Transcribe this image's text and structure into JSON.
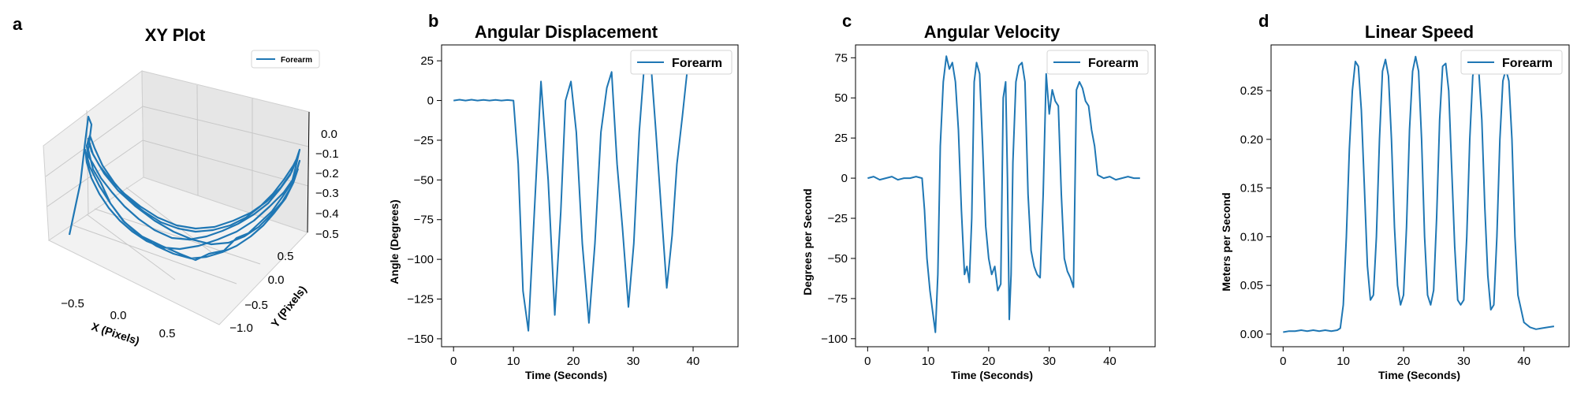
{
  "colors": {
    "line": "#1f77b4",
    "axes": "#000000",
    "pane_left": "#f0f0f0",
    "pane_right": "#e8e8e8",
    "pane_floor": "#f2f2f2",
    "grid": "#c8c8c8"
  },
  "chart_data": [
    {
      "panel": "a",
      "type": "line",
      "subtype": "3d",
      "title": "XY Plot",
      "xlabel": "X (Pixels)",
      "ylabel": "Y (Pixels)",
      "zlabel": "",
      "legend": "Forearm",
      "legend_position": "top-right",
      "xticks": [
        "−0.5",
        "0.0",
        "0.5"
      ],
      "yticks": [
        "0.5",
        "0.0",
        "−0.5",
        "−1.0"
      ],
      "zticks": [
        "0.0",
        "−0.1",
        "−0.2",
        "−0.3",
        "−0.4",
        "−0.5"
      ],
      "xlim": [
        -0.75,
        0.75
      ],
      "ylim": [
        -1.2,
        0.7
      ],
      "zlim": [
        -0.5,
        0.05
      ],
      "grid": true
    },
    {
      "panel": "b",
      "type": "line",
      "title": "Angular Displacement",
      "xlabel": "Time (Seconds)",
      "ylabel": "Angle (Degrees)",
      "legend": "Forearm",
      "legend_position": "top-right",
      "xlim": [
        -2,
        47.5
      ],
      "ylim": [
        -155,
        35
      ],
      "xticks": [
        0,
        10,
        20,
        30,
        40
      ],
      "yticks": [
        25,
        0,
        -25,
        -50,
        -75,
        -100,
        -125,
        -150
      ],
      "ytick_labels": [
        "25",
        "0",
        "−25",
        "−50",
        "−75",
        "−100",
        "−125",
        "−150"
      ],
      "grid": false,
      "x": [
        0,
        1,
        2,
        3,
        4,
        5,
        6,
        7,
        8,
        9,
        10,
        10.8,
        11.6,
        12.5,
        13.5,
        14.6,
        15.8,
        16.9,
        17.9,
        18.7,
        19.6,
        20.5,
        21.5,
        22.6,
        23.6,
        24.6,
        25.6,
        26.4,
        27.3,
        28.2,
        29.2,
        30.1,
        31,
        31.9,
        32.9,
        33.8,
        34.7,
        35.6,
        36.5,
        37.3,
        38.2,
        39,
        40
      ],
      "y": [
        0,
        0.5,
        0,
        0.5,
        0,
        0.4,
        0,
        0.4,
        0,
        0.3,
        0,
        -40,
        -120,
        -145,
        -70,
        12,
        -50,
        -135,
        -70,
        0,
        12,
        -20,
        -90,
        -140,
        -90,
        -20,
        8,
        18,
        -40,
        -80,
        -130,
        -90,
        -20,
        25,
        26,
        -20,
        -70,
        -118,
        -85,
        -40,
        -10,
        18,
        30
      ]
    },
    {
      "panel": "c",
      "type": "line",
      "title": "Angular Velocity",
      "xlabel": "Time (Seconds)",
      "ylabel": "Degrees per Second",
      "legend": "Forearm",
      "legend_position": "top-right",
      "xlim": [
        -2,
        47.5
      ],
      "ylim": [
        -105,
        83
      ],
      "xticks": [
        0,
        10,
        20,
        30,
        40
      ],
      "yticks": [
        75,
        50,
        25,
        0,
        -25,
        -50,
        -75,
        -100
      ],
      "ytick_labels": [
        "75",
        "50",
        "25",
        "0",
        "−25",
        "−50",
        "−75",
        "−100"
      ],
      "grid": false,
      "x": [
        0,
        1,
        2,
        3,
        4,
        5,
        6,
        7,
        8,
        9,
        9.4,
        9.8,
        10.3,
        10.8,
        11.2,
        11.6,
        12,
        12.5,
        13,
        13.5,
        14,
        14.5,
        15,
        15.5,
        16,
        16.4,
        16.8,
        17.2,
        17.6,
        18,
        18.5,
        19,
        19.5,
        20,
        20.5,
        21,
        21.5,
        22,
        22.4,
        22.8,
        23.1,
        23.4,
        23.7,
        24,
        24.5,
        25,
        25.5,
        26,
        26.5,
        27,
        27.5,
        28,
        28.5,
        29,
        29.5,
        30,
        30.5,
        31,
        31.5,
        32,
        32.5,
        33,
        33.5,
        34,
        34.5,
        35,
        35.5,
        36,
        36.5,
        37,
        37.5,
        38,
        39,
        40,
        41,
        42,
        43,
        44,
        45
      ],
      "y": [
        0,
        1,
        -1,
        0,
        1,
        -1,
        0,
        0,
        1,
        0,
        -20,
        -50,
        -70,
        -85,
        -96,
        -60,
        20,
        60,
        76,
        68,
        72,
        60,
        30,
        -20,
        -60,
        -55,
        -65,
        -25,
        60,
        72,
        65,
        20,
        -30,
        -50,
        -60,
        -55,
        -70,
        -66,
        50,
        60,
        0,
        -88,
        -60,
        10,
        60,
        70,
        72,
        60,
        -10,
        -45,
        -55,
        -60,
        -62,
        -10,
        65,
        40,
        55,
        48,
        45,
        -10,
        -50,
        -58,
        -62,
        -68,
        55,
        60,
        56,
        48,
        45,
        30,
        20,
        2,
        0,
        1,
        -1,
        0,
        1,
        0,
        0
      ]
    },
    {
      "panel": "d",
      "type": "line",
      "title": "Linear Speed",
      "xlabel": "Time (Seconds)",
      "ylabel": "Meters per Second",
      "legend": "Forearm",
      "legend_position": "top-right",
      "xlim": [
        -2,
        47.5
      ],
      "ylim": [
        -0.013,
        0.297
      ],
      "xticks": [
        0,
        10,
        20,
        30,
        40
      ],
      "yticks": [
        0.25,
        0.2,
        0.15,
        0.1,
        0.05,
        0.0
      ],
      "ytick_labels": [
        "0.25",
        "0.20",
        "0.15",
        "0.10",
        "0.05",
        "0.00"
      ],
      "grid": false,
      "x": [
        0,
        1,
        2,
        3,
        4,
        5,
        6,
        7,
        8,
        9,
        9.5,
        10,
        10.5,
        11,
        11.5,
        12,
        12.5,
        13,
        13.5,
        14,
        14.5,
        15,
        15.5,
        16,
        16.5,
        17,
        17.5,
        18,
        18.5,
        19,
        19.5,
        20,
        20.5,
        21,
        21.5,
        22,
        22.5,
        23,
        23.5,
        24,
        24.5,
        25,
        25.5,
        26,
        26.5,
        27,
        27.5,
        28,
        28.5,
        29,
        29.5,
        30,
        30.5,
        31,
        31.5,
        32,
        32.5,
        33,
        33.5,
        34,
        34.5,
        35,
        35.5,
        36,
        36.5,
        37,
        37.5,
        38,
        38.5,
        39,
        40,
        41,
        42,
        43,
        44,
        45
      ],
      "y": [
        0.002,
        0.003,
        0.003,
        0.004,
        0.003,
        0.004,
        0.003,
        0.004,
        0.003,
        0.004,
        0.006,
        0.03,
        0.1,
        0.19,
        0.25,
        0.28,
        0.275,
        0.23,
        0.15,
        0.07,
        0.035,
        0.04,
        0.1,
        0.2,
        0.27,
        0.282,
        0.265,
        0.2,
        0.11,
        0.05,
        0.03,
        0.04,
        0.11,
        0.21,
        0.27,
        0.285,
        0.27,
        0.2,
        0.1,
        0.04,
        0.03,
        0.045,
        0.12,
        0.22,
        0.275,
        0.278,
        0.25,
        0.17,
        0.09,
        0.035,
        0.03,
        0.035,
        0.1,
        0.2,
        0.265,
        0.28,
        0.27,
        0.22,
        0.13,
        0.06,
        0.025,
        0.03,
        0.1,
        0.2,
        0.26,
        0.272,
        0.26,
        0.2,
        0.1,
        0.04,
        0.012,
        0.007,
        0.005,
        0.006,
        0.007,
        0.008
      ]
    }
  ]
}
